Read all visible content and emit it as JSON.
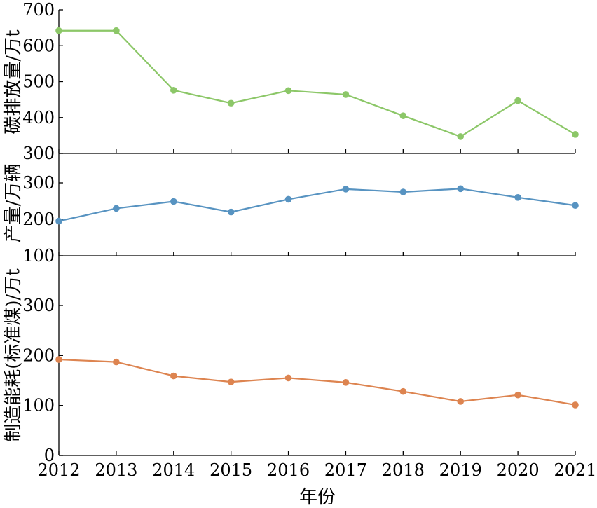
{
  "chart_data": [
    {
      "type": "line",
      "panel": "top",
      "ylabel": "碳排放量/万t",
      "ylim": [
        300,
        700
      ],
      "yticks": [
        300,
        400,
        500,
        600,
        700
      ],
      "x": [
        2012,
        2013,
        2014,
        2015,
        2016,
        2017,
        2018,
        2019,
        2020,
        2021
      ],
      "series": [
        {
          "color": "#8cc768",
          "values": [
            642,
            642,
            476,
            440,
            475,
            464,
            405,
            347,
            447,
            353
          ]
        }
      ]
    },
    {
      "type": "line",
      "panel": "middle",
      "ylabel": "产量/万辆",
      "ylim": [
        100,
        300
      ],
      "yticks": [
        100,
        200,
        300
      ],
      "x": [
        2012,
        2013,
        2014,
        2015,
        2016,
        2017,
        2018,
        2019,
        2020,
        2021
      ],
      "series": [
        {
          "color": "#5793c1",
          "values": [
            195,
            230,
            249,
            220,
            255,
            283,
            275,
            284,
            260,
            238
          ]
        }
      ]
    },
    {
      "type": "line",
      "panel": "bottom",
      "ylabel": "制造能耗(标准煤)/万t",
      "ylim": [
        0,
        350
      ],
      "yticks": [
        0,
        100,
        200,
        300
      ],
      "x": [
        2012,
        2013,
        2014,
        2015,
        2016,
        2017,
        2018,
        2019,
        2020,
        2021
      ],
      "series": [
        {
          "color": "#dd8450",
          "values": [
            192,
            187,
            159,
            147,
            155,
            146,
            128,
            108,
            121,
            101
          ]
        }
      ]
    }
  ],
  "xlabel": "年份",
  "xticks": [
    "2012",
    "2013",
    "2014",
    "2015",
    "2016",
    "2017",
    "2018",
    "2019",
    "2020",
    "2021"
  ]
}
